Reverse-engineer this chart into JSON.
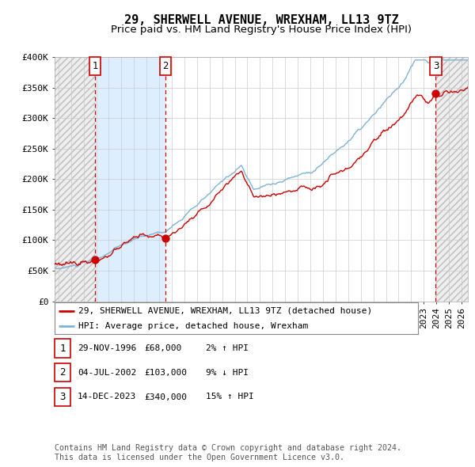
{
  "title": "29, SHERWELL AVENUE, WREXHAM, LL13 9TZ",
  "subtitle": "Price paid vs. HM Land Registry's House Price Index (HPI)",
  "property_label": "29, SHERWELL AVENUE, WREXHAM, LL13 9TZ (detached house)",
  "hpi_label": "HPI: Average price, detached house, Wrexham",
  "sale_dates_num": [
    1996.91,
    2002.5,
    2023.95
  ],
  "sale_prices": [
    68000,
    103000,
    340000
  ],
  "sale_labels": [
    "1",
    "2",
    "3"
  ],
  "sale_info": [
    {
      "num": "1",
      "date": "29-NOV-1996",
      "price": "£68,000",
      "hpi": "2% ↑ HPI"
    },
    {
      "num": "2",
      "date": "04-JUL-2002",
      "price": "£103,000",
      "hpi": "9% ↓ HPI"
    },
    {
      "num": "3",
      "date": "14-DEC-2023",
      "price": "£340,000",
      "hpi": "15% ↑ HPI"
    }
  ],
  "line_color_property": "#cc0000",
  "line_color_hpi": "#7fb3d3",
  "marker_color": "#cc0000",
  "dashed_line_color": "#cc0000",
  "shaded_region_color": "#ddeeff",
  "grid_color": "#cccccc",
  "background_color": "#ffffff",
  "ylim": [
    0,
    400000
  ],
  "ytick_values": [
    0,
    50000,
    100000,
    150000,
    200000,
    250000,
    300000,
    350000,
    400000
  ],
  "ytick_labels": [
    "£0",
    "£50K",
    "£100K",
    "£150K",
    "£200K",
    "£250K",
    "£300K",
    "£350K",
    "£400K"
  ],
  "xlim_start": 1993.7,
  "xlim_end": 2026.5,
  "footer": "Contains HM Land Registry data © Crown copyright and database right 2024.\nThis data is licensed under the Open Government Licence v3.0.",
  "title_fontsize": 11,
  "subtitle_fontsize": 9.5,
  "tick_fontsize": 8,
  "legend_fontsize": 8,
  "table_fontsize": 8
}
